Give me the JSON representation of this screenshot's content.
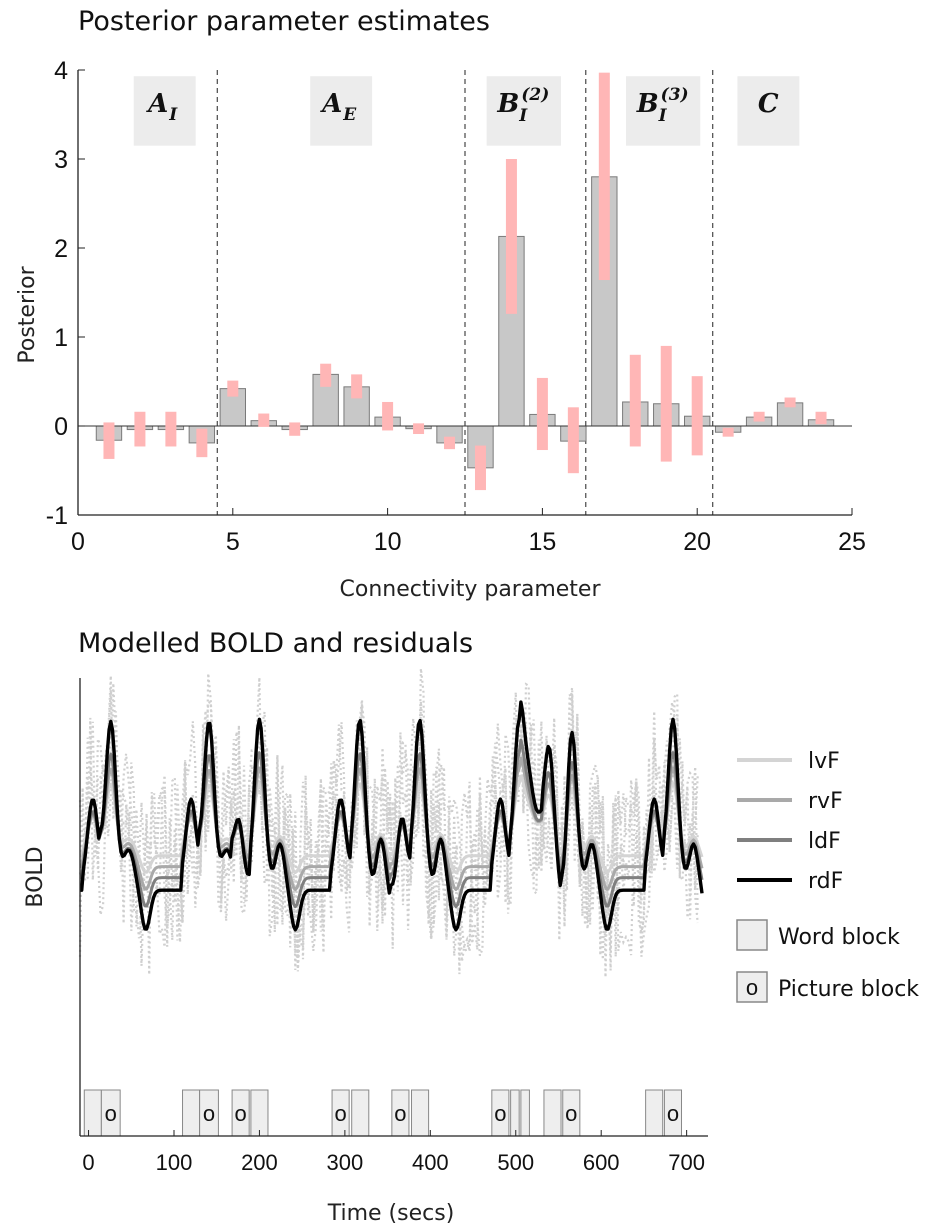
{
  "chart_data": [
    {
      "type": "bar",
      "title": "Posterior parameter estimates",
      "xlabel": "Connectivity parameter",
      "ylabel": "Posterior",
      "xlim": [
        0,
        25
      ],
      "ylim": [
        -1,
        4
      ],
      "xticks": [
        0,
        5,
        10,
        15,
        20,
        25
      ],
      "yticks": [
        -1,
        0,
        1,
        2,
        3,
        4
      ],
      "x": [
        1,
        2,
        3,
        4,
        5,
        6,
        7,
        8,
        9,
        10,
        11,
        12,
        13,
        14,
        15,
        16,
        17,
        18,
        19,
        20,
        21,
        22,
        23,
        24
      ],
      "values": [
        -0.16,
        -0.04,
        -0.04,
        -0.19,
        0.42,
        0.06,
        -0.04,
        0.58,
        0.44,
        0.1,
        -0.03,
        -0.19,
        -0.47,
        2.13,
        0.13,
        -0.17,
        2.8,
        0.27,
        0.25,
        0.11,
        -0.07,
        0.1,
        0.26,
        0.07
      ],
      "ci_lower": [
        -0.37,
        -0.23,
        -0.23,
        -0.35,
        0.33,
        -0.01,
        -0.11,
        0.44,
        0.31,
        -0.05,
        -0.09,
        -0.26,
        -0.72,
        1.26,
        -0.27,
        -0.53,
        1.64,
        -0.23,
        -0.4,
        -0.33,
        -0.12,
        0.05,
        0.21,
        0.02
      ],
      "ci_upper": [
        0.04,
        0.16,
        0.16,
        -0.03,
        0.51,
        0.14,
        0.04,
        0.7,
        0.58,
        0.27,
        0.03,
        -0.12,
        -0.22,
        3.0,
        0.54,
        0.21,
        3.97,
        0.8,
        0.9,
        0.56,
        -0.02,
        0.16,
        0.32,
        0.16
      ],
      "dividers": [
        4.5,
        12.5,
        16.4,
        20.5
      ],
      "groups": [
        {
          "id": "A_I",
          "base": "A",
          "sub": "I",
          "sup": "",
          "center": 2.8,
          "width": 2.0
        },
        {
          "id": "A_E",
          "base": "A",
          "sub": "E",
          "sup": "",
          "center": 8.5,
          "width": 2.0
        },
        {
          "id": "B_I2",
          "base": "B",
          "sub": "I",
          "sup": "(2)",
          "center": 14.4,
          "width": 2.4
        },
        {
          "id": "B_I3",
          "base": "B",
          "sub": "I",
          "sup": "(3)",
          "center": 18.9,
          "width": 2.4
        },
        {
          "id": "C",
          "base": "C",
          "sub": "",
          "sup": "",
          "center": 22.3,
          "width": 2.0
        }
      ],
      "colors": {
        "bar": "#c8c8c8",
        "bar_edge": "#7a7a7a",
        "ci": "#ffb6b6",
        "divider": "#555555",
        "group_bg": "#ececec"
      }
    },
    {
      "type": "line",
      "title": "Modelled BOLD and residuals",
      "xlabel": "Time (secs)",
      "ylabel": "BOLD",
      "xlim": [
        -10,
        725
      ],
      "xticks": [
        0,
        100,
        200,
        300,
        400,
        500,
        600,
        700
      ],
      "ylim": [
        -4,
        4
      ],
      "series": [
        {
          "name": "lvF",
          "color": "#d4d4d4",
          "width": 3,
          "baseline": 0.35,
          "gain": 0.55
        },
        {
          "name": "rvF",
          "color": "#a9a9a9",
          "width": 3,
          "baseline": 0.15,
          "gain": 0.75
        },
        {
          "name": "ldF",
          "color": "#7f7f7f",
          "width": 3,
          "baseline": -0.05,
          "gain": 0.95
        },
        {
          "name": "rdF",
          "color": "#000000",
          "width": 3.4,
          "baseline": -0.25,
          "gain": 1.3
        }
      ],
      "residuals": {
        "color": "#cfcfcf"
      },
      "legend_blocks": [
        {
          "label": "Word block",
          "marker": ""
        },
        {
          "label": "Picture block",
          "marker": "o"
        }
      ],
      "blocks": [
        {
          "start": -5,
          "end": 15,
          "type": "word"
        },
        {
          "start": 15,
          "end": 37,
          "type": "picture"
        },
        {
          "start": 110,
          "end": 130,
          "type": "word"
        },
        {
          "start": 130,
          "end": 152,
          "type": "picture"
        },
        {
          "start": 168,
          "end": 188,
          "type": "picture"
        },
        {
          "start": 190,
          "end": 210,
          "type": "word"
        },
        {
          "start": 285,
          "end": 305,
          "type": "picture"
        },
        {
          "start": 308,
          "end": 328,
          "type": "word"
        },
        {
          "start": 355,
          "end": 375,
          "type": "picture"
        },
        {
          "start": 378,
          "end": 398,
          "type": "word"
        },
        {
          "start": 472,
          "end": 492,
          "type": "picture"
        },
        {
          "start": 494,
          "end": 504,
          "type": "word"
        },
        {
          "start": 506,
          "end": 516,
          "type": "word"
        },
        {
          "start": 533,
          "end": 553,
          "type": "word"
        },
        {
          "start": 555,
          "end": 575,
          "type": "picture"
        },
        {
          "start": 652,
          "end": 672,
          "type": "word"
        },
        {
          "start": 674,
          "end": 694,
          "type": "picture"
        }
      ]
    }
  ]
}
